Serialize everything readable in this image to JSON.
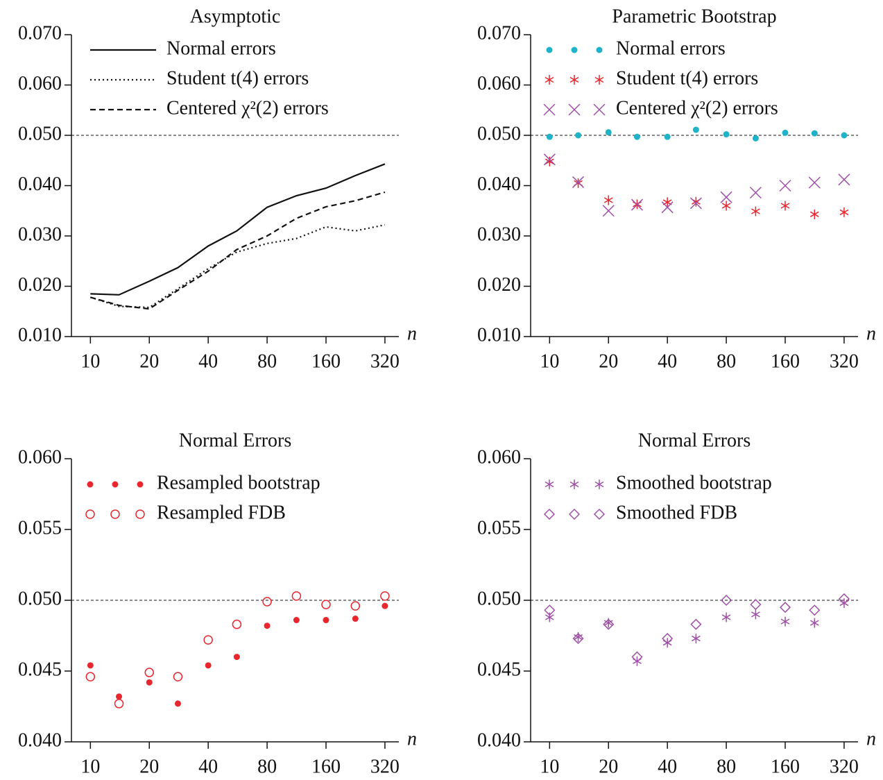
{
  "chart_data": [
    {
      "type": "line",
      "title": "Asymptotic",
      "x_label": "n",
      "xscale": "log",
      "legend": "upper left",
      "reference_line": 0.05,
      "x": [
        10,
        14,
        20,
        28,
        40,
        56,
        80,
        113,
        160,
        226,
        320
      ],
      "xlim": [
        8,
        377
      ],
      "xticks": [
        10,
        20,
        40,
        80,
        160,
        320
      ],
      "ylim": [
        0.01,
        0.07
      ],
      "yticks": [
        {
          "value": 0.01,
          "label": "0.010"
        },
        {
          "value": 0.02,
          "label": "0.020"
        },
        {
          "value": 0.03,
          "label": "0.030"
        },
        {
          "value": 0.04,
          "label": "0.040"
        },
        {
          "value": 0.05,
          "label": "0.050"
        },
        {
          "value": 0.06,
          "label": "0.060"
        },
        {
          "value": 0.07,
          "label": "0.070"
        }
      ],
      "series": [
        {
          "name": "Normal errors",
          "color": "#111111",
          "marker": "solid",
          "values": [
            0.0185,
            0.0183,
            0.021,
            0.0237,
            0.028,
            0.031,
            0.0357,
            0.038,
            0.0395,
            0.042,
            0.0443
          ]
        },
        {
          "name": "Student t(4) errors",
          "color": "#111111",
          "marker": "dotted",
          "values": [
            0.0178,
            0.016,
            0.0158,
            0.0195,
            0.0235,
            0.0268,
            0.0285,
            0.0295,
            0.0318,
            0.031,
            0.0322
          ]
        },
        {
          "name": "Centered χ²(2) errors",
          "color": "#111111",
          "marker": "dashed",
          "values": [
            0.0178,
            0.0162,
            0.0155,
            0.0192,
            0.023,
            0.0273,
            0.03,
            0.0335,
            0.0358,
            0.037,
            0.0387
          ]
        }
      ]
    },
    {
      "type": "scatter",
      "title": "Parametric Bootstrap",
      "x_label": "n",
      "xscale": "log",
      "legend": "upper left",
      "reference_line": 0.05,
      "x": [
        10,
        14,
        20,
        28,
        40,
        56,
        80,
        113,
        160,
        226,
        320
      ],
      "xlim": [
        8,
        377
      ],
      "xticks": [
        10,
        20,
        40,
        80,
        160,
        320
      ],
      "ylim": [
        0.01,
        0.07
      ],
      "yticks": [
        {
          "value": 0.01,
          "label": "0.010"
        },
        {
          "value": 0.02,
          "label": "0.020"
        },
        {
          "value": 0.03,
          "label": "0.030"
        },
        {
          "value": 0.04,
          "label": "0.040"
        },
        {
          "value": 0.05,
          "label": "0.050"
        },
        {
          "value": 0.06,
          "label": "0.060"
        },
        {
          "value": 0.07,
          "label": "0.070"
        }
      ],
      "series": [
        {
          "name": "Normal errors",
          "color": "#1fb3c9",
          "marker": "dot",
          "values": [
            0.0497,
            0.05,
            0.0506,
            0.0497,
            0.0497,
            0.0511,
            0.0502,
            0.0494,
            0.0505,
            0.0504,
            0.05
          ]
        },
        {
          "name": "Student t(4) errors",
          "color": "#e8262e",
          "marker": "star",
          "values": [
            0.0448,
            0.0405,
            0.0371,
            0.0363,
            0.0367,
            0.0368,
            0.036,
            0.0349,
            0.036,
            0.0343,
            0.0347
          ]
        },
        {
          "name": "Centered χ²(2) errors",
          "color": "#a04fa8",
          "marker": "cross",
          "values": [
            0.0452,
            0.0407,
            0.035,
            0.0362,
            0.0357,
            0.0365,
            0.0377,
            0.0386,
            0.04,
            0.0406,
            0.0412
          ]
        }
      ]
    },
    {
      "type": "scatter",
      "title": "Normal Errors",
      "x_label": "n",
      "xscale": "log",
      "legend": "upper left",
      "reference_line": 0.05,
      "x": [
        10,
        14,
        20,
        28,
        40,
        56,
        80,
        113,
        160,
        226,
        320
      ],
      "xlim": [
        8,
        377
      ],
      "xticks": [
        10,
        20,
        40,
        80,
        160,
        320
      ],
      "ylim": [
        0.04,
        0.06
      ],
      "yticks": [
        {
          "value": 0.04,
          "label": "0.040"
        },
        {
          "value": 0.045,
          "label": "0.045"
        },
        {
          "value": 0.05,
          "label": "0.050"
        },
        {
          "value": 0.055,
          "label": "0.055"
        },
        {
          "value": 0.06,
          "label": "0.060"
        }
      ],
      "series": [
        {
          "name": "Resampled bootstrap",
          "color": "#e8262e",
          "marker": "dot",
          "values": [
            0.0454,
            0.0432,
            0.0442,
            0.0427,
            0.0454,
            0.046,
            0.0482,
            0.0486,
            0.0486,
            0.0487,
            0.0496
          ]
        },
        {
          "name": "Resampled FDB",
          "color": "#e8262e",
          "marker": "circle",
          "values": [
            0.0446,
            0.0427,
            0.0449,
            0.0446,
            0.0472,
            0.0483,
            0.0499,
            0.0503,
            0.0497,
            0.0496,
            0.0503
          ]
        }
      ]
    },
    {
      "type": "scatter",
      "title": "Normal Errors",
      "x_label": "n",
      "xscale": "log",
      "legend": "upper left",
      "reference_line": 0.05,
      "x": [
        10,
        14,
        20,
        28,
        40,
        56,
        80,
        113,
        160,
        226,
        320
      ],
      "xlim": [
        8,
        377
      ],
      "xticks": [
        10,
        20,
        40,
        80,
        160,
        320
      ],
      "ylim": [
        0.04,
        0.06
      ],
      "yticks": [
        {
          "value": 0.04,
          "label": "0.040"
        },
        {
          "value": 0.045,
          "label": "0.045"
        },
        {
          "value": 0.05,
          "label": "0.050"
        },
        {
          "value": 0.055,
          "label": "0.055"
        },
        {
          "value": 0.06,
          "label": "0.060"
        }
      ],
      "series": [
        {
          "name": "Smoothed bootstrap",
          "color": "#a04fa8",
          "marker": "star",
          "values": [
            0.0488,
            0.0474,
            0.0484,
            0.0457,
            0.047,
            0.0473,
            0.0488,
            0.049,
            0.0485,
            0.0484,
            0.0498
          ]
        },
        {
          "name": "Smoothed FDB",
          "color": "#a04fa8",
          "marker": "diamond",
          "values": [
            0.0493,
            0.0473,
            0.0483,
            0.046,
            0.0473,
            0.0483,
            0.05,
            0.0497,
            0.0495,
            0.0493,
            0.0501
          ]
        }
      ]
    }
  ]
}
